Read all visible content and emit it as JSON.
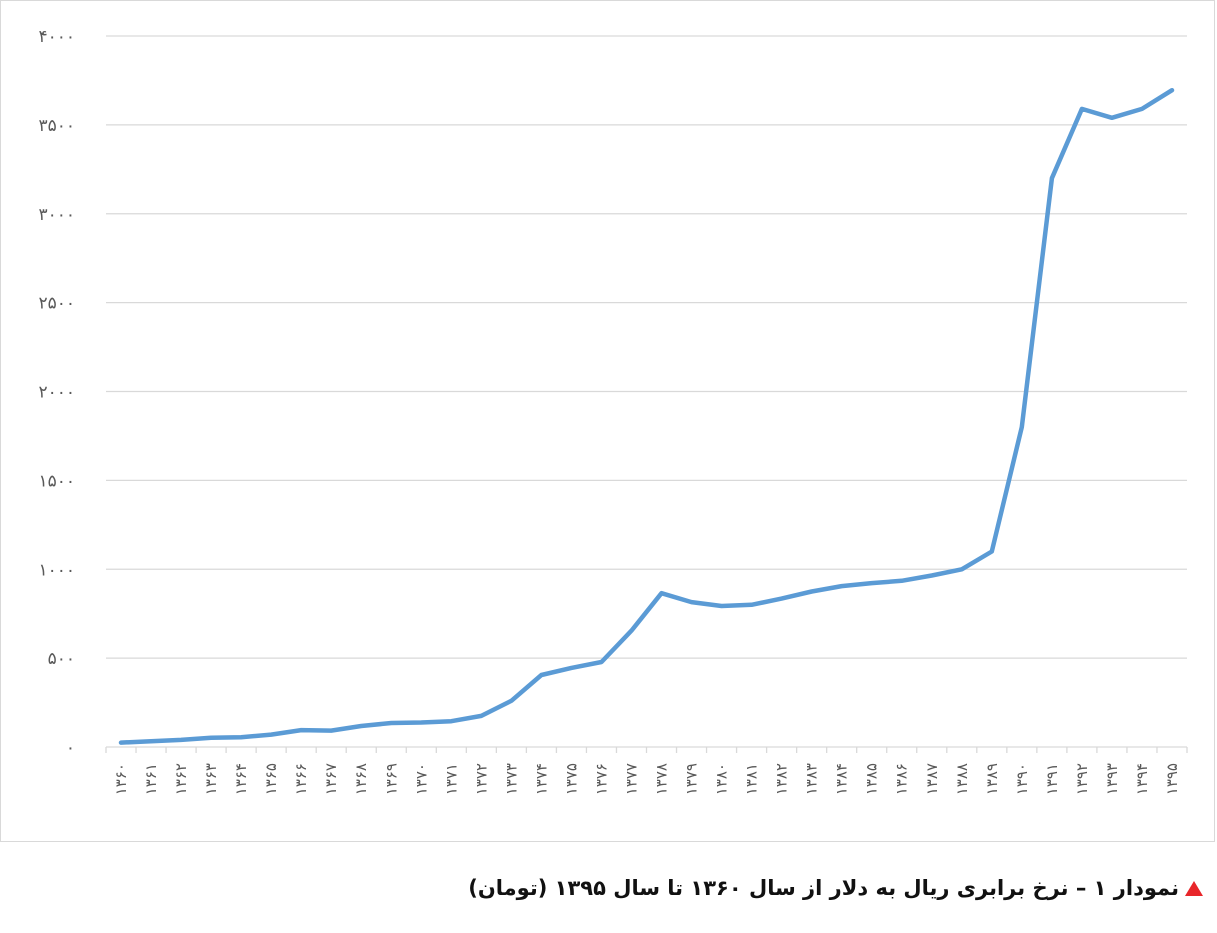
{
  "caption": {
    "text": "نمودار ۱ – نرخ برابری ریال به دلار از سال ۱۳۶۰ تا سال ۱۳۹۵ (تومان)",
    "marker": "triangle-up-icon",
    "marker_color": "#e8262a"
  },
  "chart_data": {
    "type": "line",
    "title": "",
    "xlabel": "",
    "ylabel": "",
    "ylim": [
      0,
      4000
    ],
    "grid": true,
    "legend": "none",
    "line_color": "#5b9bd5",
    "y_ticks": [
      0,
      500,
      1000,
      1500,
      2000,
      2500,
      3000,
      3500,
      4000
    ],
    "y_tick_labels": [
      "۰",
      "۵۰۰",
      "۱۰۰۰",
      "۱۵۰۰",
      "۲۰۰۰",
      "۲۵۰۰",
      "۳۰۰۰",
      "۳۵۰۰",
      "۴۰۰۰"
    ],
    "categories": [
      "۱۳۶۰",
      "۱۳۶۱",
      "۱۳۶۲",
      "۱۳۶۳",
      "۱۳۶۴",
      "۱۳۶۵",
      "۱۳۶۶",
      "۱۳۶۷",
      "۱۳۶۸",
      "۱۳۶۹",
      "۱۳۷۰",
      "۱۳۷۱",
      "۱۳۷۲",
      "۱۳۷۳",
      "۱۳۷۴",
      "۱۳۷۵",
      "۱۳۷۶",
      "۱۳۷۷",
      "۱۳۷۸",
      "۱۳۷۹",
      "۱۳۸۰",
      "۱۳۸۱",
      "۱۳۸۲",
      "۱۳۸۳",
      "۱۳۸۴",
      "۱۳۸۵",
      "۱۳۸۶",
      "۱۳۸۷",
      "۱۳۸۸",
      "۱۳۸۹",
      "۱۳۹۰",
      "۱۳۹۱",
      "۱۳۹۲",
      "۱۳۹۳",
      "۱۳۹۴",
      "۱۳۹۵"
    ],
    "series": [
      {
        "values": [
          25,
          32,
          40,
          52,
          55,
          70,
          95,
          92,
          118,
          135,
          138,
          145,
          175,
          260,
          405,
          445,
          478,
          655,
          865,
          815,
          793,
          800,
          835,
          875,
          905,
          922,
          935,
          965,
          1000,
          1100,
          1800,
          3200,
          3590,
          3540,
          3590,
          3695
        ]
      }
    ]
  }
}
